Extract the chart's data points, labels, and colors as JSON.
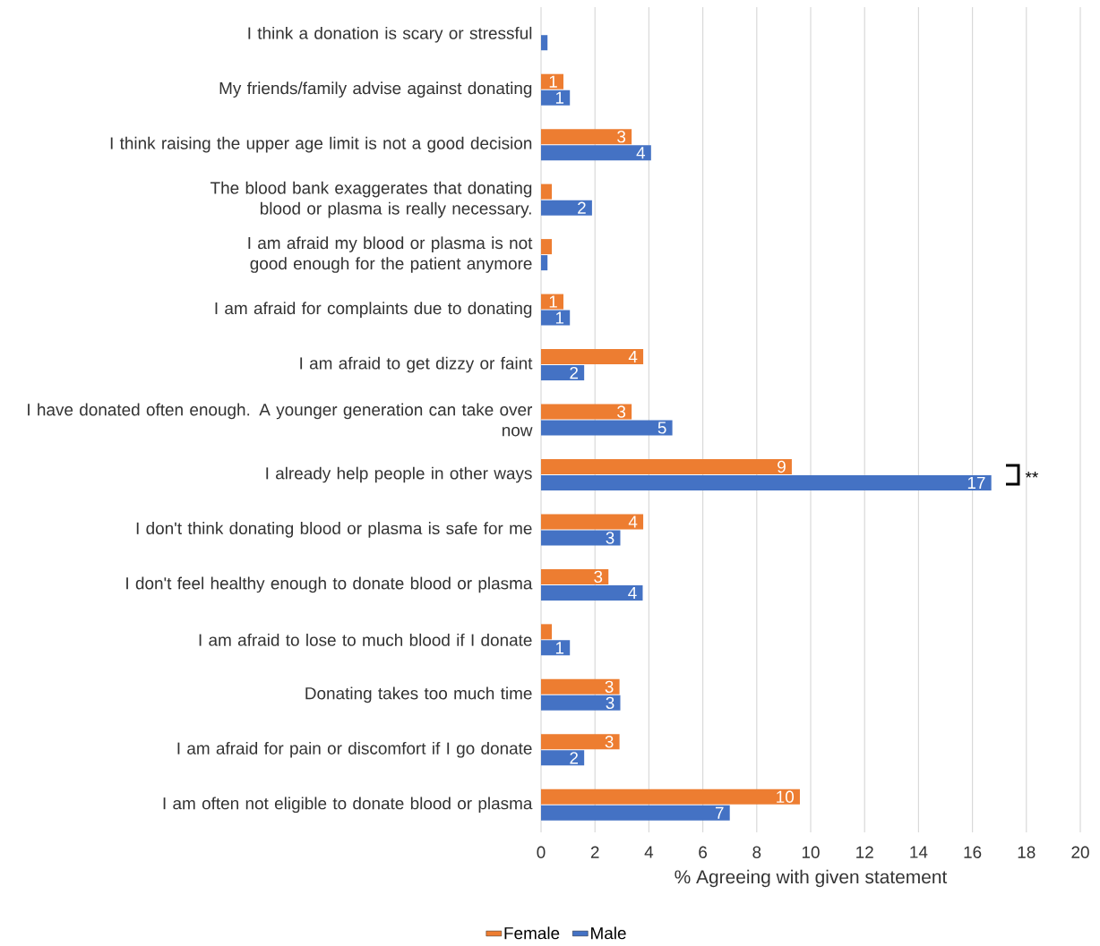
{
  "chart_data": {
    "type": "bar",
    "orientation": "horizontal",
    "xlabel": "% Agreeing with given statement",
    "categories": [
      "I think a donation is scary or stressful",
      "My friends/family advise against donating",
      "I think raising the upper age limit is not a good decision",
      "The blood bank exaggerates that donating blood or plasma is really necessary.",
      "I am afraid my blood or plasma is not good enough for the patient anymore",
      "I am afraid for complaints due to donating",
      "I am afraid to get dizzy or faint",
      "I have donated often enough. A younger generation can take over now",
      "I already help people in other ways",
      "I don't think donating blood or plasma is safe for me",
      "I don't feel healthy enough to donate blood or plasma",
      "I am afraid to lose to much blood if I donate",
      "Donating takes too much time",
      "I am afraid for pain or discomfort if I go donate",
      "I am often not eligible to donate blood or plasma"
    ],
    "series": [
      {
        "name": "Female",
        "color": "#ed7d31",
        "values": [
          null,
          0.83,
          3.36,
          0.4,
          0.4,
          0.83,
          3.79,
          3.36,
          9.3,
          3.79,
          2.5,
          0.4,
          2.91,
          2.91,
          9.6
        ],
        "value_labels": [
          null,
          "1",
          "3",
          null,
          null,
          "1",
          "4",
          "3",
          "9",
          "4",
          "3",
          null,
          "3",
          "3",
          "10"
        ]
      },
      {
        "name": "Male",
        "color": "#4472c4",
        "values": [
          0.24,
          1.07,
          4.08,
          1.89,
          0.24,
          1.07,
          1.6,
          4.87,
          16.7,
          2.94,
          3.77,
          1.07,
          2.94,
          1.6,
          7.0
        ],
        "value_labels": [
          null,
          "1",
          "4",
          "2",
          null,
          "1",
          "2",
          "5",
          "17",
          "3",
          "4",
          "1",
          "3",
          "2",
          "7"
        ]
      }
    ],
    "xlim": [
      0,
      20
    ],
    "xticks": [
      0,
      2,
      4,
      6,
      8,
      10,
      12,
      14,
      16,
      18,
      20
    ],
    "grid": "x",
    "legend": "bottom",
    "annotations": [
      "**"
    ]
  }
}
